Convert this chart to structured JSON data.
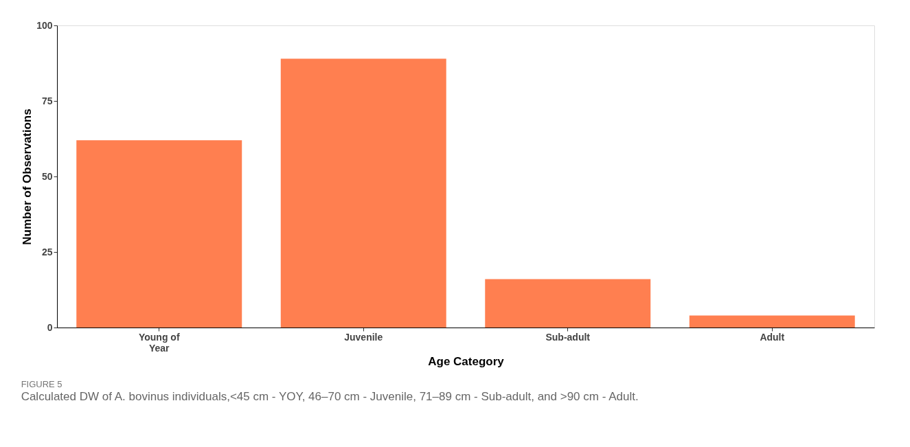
{
  "chart_data": {
    "type": "bar",
    "xlabel": "Age Category",
    "ylabel": "Number of Observations",
    "categories": [
      "Young of Year",
      "Juvenile",
      "Sub-adult",
      "Adult"
    ],
    "values": [
      62,
      89,
      16,
      4
    ],
    "color": "#ff7f50",
    "ylim": [
      0,
      100
    ],
    "yticks": [
      0,
      25,
      50,
      75,
      100
    ],
    "grid": false,
    "annotations": [
      "FIGURE 5",
      "Calculated DW of A. bovinus individuals,<45 cm - YOY, 46–70 cm - Juvenile, 71–89 cm - Sub-adult, and >90 cm - Adult."
    ]
  }
}
